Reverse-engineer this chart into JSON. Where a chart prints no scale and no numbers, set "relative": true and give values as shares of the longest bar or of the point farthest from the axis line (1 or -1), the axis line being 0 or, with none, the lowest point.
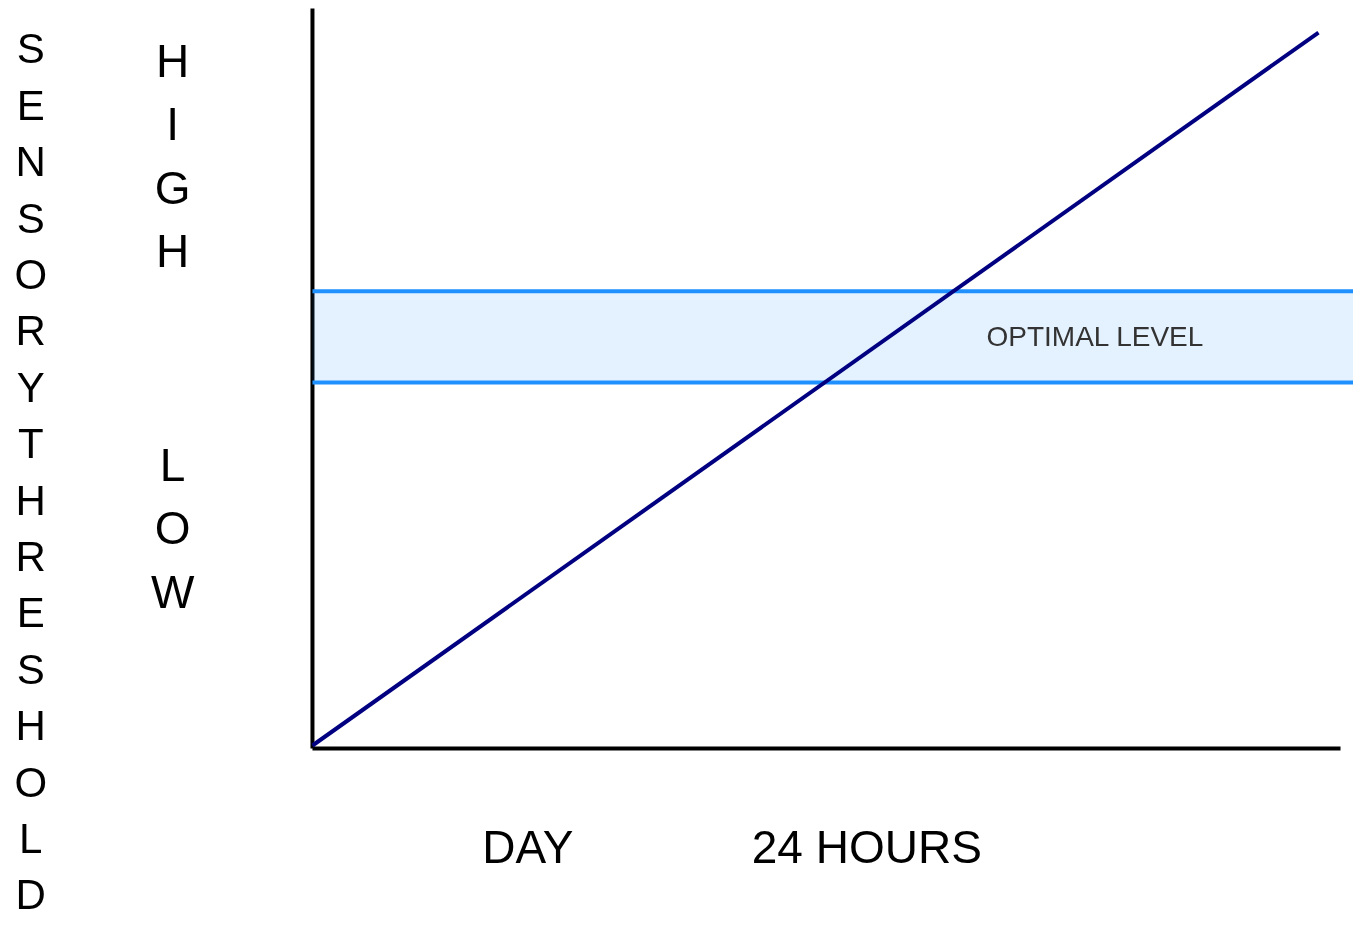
{
  "chart_data": {
    "type": "line",
    "relative": true,
    "ylabel": "SENSORY THRESHOLD",
    "categories": [
      null,
      null
    ],
    "series": [
      {
        "color": "#000080",
        "values": [
          0,
          1
        ]
      }
    ],
    "bands": [
      {
        "axis": "y",
        "from": 0.509,
        "to": 0.637,
        "label": "OPTIMAL LEVEL",
        "color": "#1e90ff"
      }
    ],
    "ref_lines": [
      {
        "axis": "y",
        "value": 0.509,
        "label": null,
        "color": "#1e90ff"
      },
      {
        "axis": "y",
        "value": 0.637,
        "label": null,
        "color": "#1e90ff"
      }
    ],
    "annotations": [
      "HIGH",
      "LOW",
      "DAY",
      "24 HOURS"
    ]
  }
}
